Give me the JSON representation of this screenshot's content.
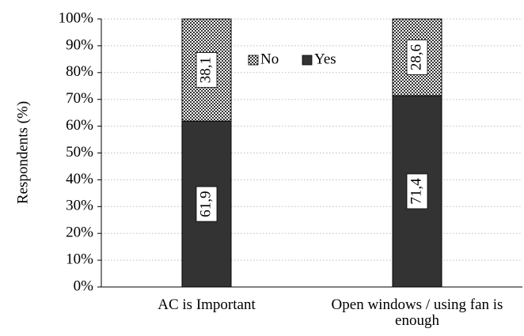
{
  "chart_data": {
    "type": "stacked_bar",
    "ylabel": "Respondents (%)",
    "categories": [
      "AC is Important",
      "Open windows / using fan is enough"
    ],
    "series": [
      {
        "name": "Yes",
        "color": "#333333",
        "values": [
          61.9,
          71.4
        ],
        "value_labels": [
          "61,9",
          "71,4"
        ]
      },
      {
        "name": "No",
        "color": "#ffffff",
        "pattern": "dots",
        "values": [
          38.1,
          28.6
        ],
        "value_labels": [
          "38,1",
          "28,6"
        ]
      }
    ],
    "legend_order": [
      "No",
      "Yes"
    ],
    "legend": "upper center",
    "ylim": [
      0,
      100
    ],
    "yticks": [
      {
        "value": 0,
        "label": "0%"
      },
      {
        "value": 10,
        "label": "10%"
      },
      {
        "value": 20,
        "label": "20%"
      },
      {
        "value": 30,
        "label": "30%"
      },
      {
        "value": 40,
        "label": "40%"
      },
      {
        "value": 50,
        "label": "50%"
      },
      {
        "value": 60,
        "label": "60%"
      },
      {
        "value": 70,
        "label": "70%"
      },
      {
        "value": 80,
        "label": "80%"
      },
      {
        "value": 90,
        "label": "90%"
      },
      {
        "value": 100,
        "label": "100%"
      }
    ],
    "grid": true
  }
}
